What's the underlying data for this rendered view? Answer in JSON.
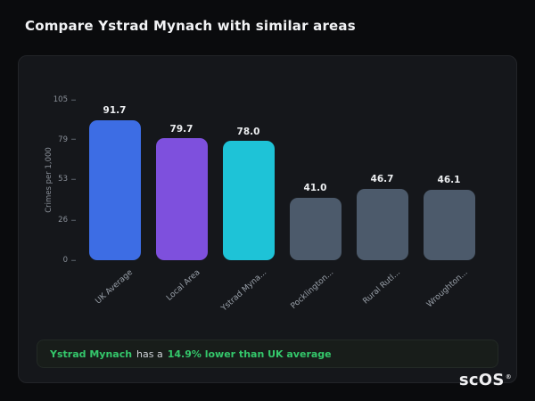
{
  "page": {
    "title": "Compare Ystrad Mynach with similar areas"
  },
  "chart_data": {
    "type": "bar",
    "categories": [
      "UK Average",
      "Local Area",
      "Ystrad Myna...",
      "Pocklington...",
      "Rural Rutl...",
      "Wroughton..."
    ],
    "values": [
      91.7,
      79.7,
      78.0,
      41.0,
      46.7,
      46.1
    ],
    "value_labels": [
      "91.7",
      "79.7",
      "78.0",
      "41.0",
      "46.7",
      "46.1"
    ],
    "bar_colors": [
      "#3d6de4",
      "#7e50dd",
      "#1ec3d7",
      "#4c5a6b",
      "#4c5a6b",
      "#4c5a6b"
    ],
    "title": "",
    "xlabel": "",
    "ylabel": "Crimes per 1,000",
    "yticks": [
      105,
      79,
      53,
      26,
      0
    ],
    "ylim": [
      0,
      105
    ],
    "grid": false,
    "legend": "none"
  },
  "callout": {
    "area_name": "Ystrad Mynach",
    "middle_text": "has a",
    "highlight_text": "14.9% lower than UK average",
    "accent_color": "#34c76b"
  },
  "logo": {
    "text": "scOS",
    "mark": "®"
  }
}
